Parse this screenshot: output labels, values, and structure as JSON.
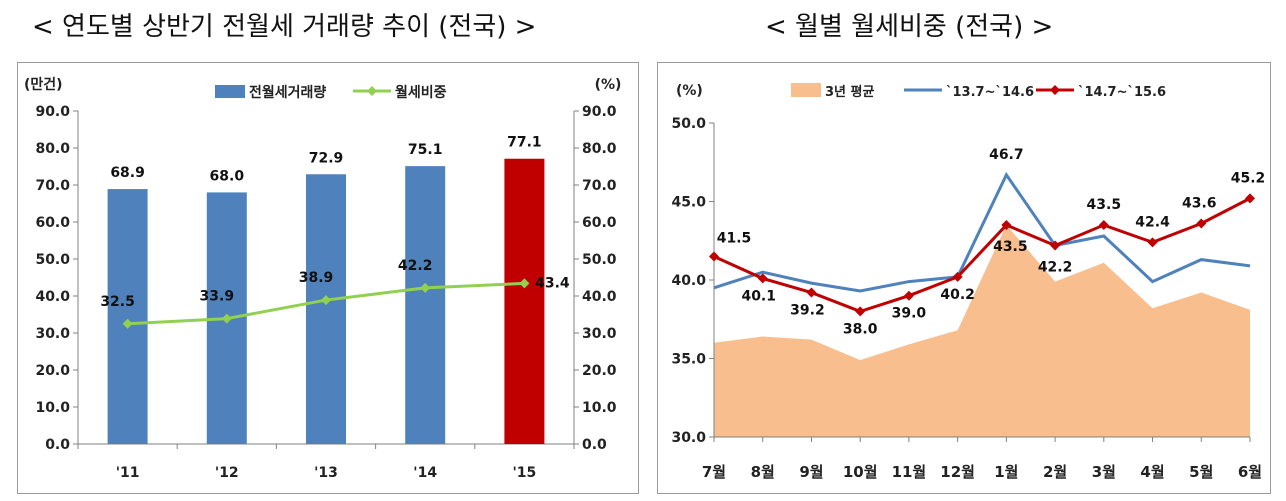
{
  "titles": {
    "left": "< 연도별 상반기 전월세 거래량 추이 (전국) >",
    "right": "< 월별 월세비중 (전국) >"
  },
  "chart_data": [
    {
      "type": "bar",
      "categories": [
        "'11",
        "'12",
        "'13",
        "'14",
        "'15"
      ],
      "series": [
        {
          "name": "전월세거래량",
          "kind": "bar",
          "axis": "left",
          "values": [
            68.9,
            68.0,
            72.9,
            75.1,
            77.1
          ],
          "colors": [
            "#4f81bd",
            "#4f81bd",
            "#4f81bd",
            "#4f81bd",
            "#c00000"
          ]
        },
        {
          "name": "월세비중",
          "kind": "line",
          "axis": "right",
          "values": [
            32.5,
            33.9,
            38.9,
            42.2,
            43.4
          ],
          "color": "#92d050"
        }
      ],
      "ylabel_left": "(만건)",
      "ylabel_right": "(%)",
      "ylim": [
        0,
        90
      ],
      "ytick_labels": [
        "0.0",
        "10.0",
        "20.0",
        "30.0",
        "40.0",
        "50.0",
        "60.0",
        "70.0",
        "80.0",
        "90.0"
      ],
      "bar_labels": [
        "68.9",
        "68.0",
        "72.9",
        "75.1",
        "77.1"
      ],
      "line_labels": [
        "32.5",
        "33.9",
        "38.9",
        "42.2",
        "43.4"
      ],
      "legend": "top-center",
      "grid": false
    },
    {
      "type": "line",
      "categories": [
        "7월",
        "8월",
        "9월",
        "10월",
        "11월",
        "12월",
        "1월",
        "2월",
        "3월",
        "4월",
        "5월",
        "6월"
      ],
      "series": [
        {
          "name": "3년 평균",
          "kind": "area",
          "values": [
            36.0,
            36.4,
            36.2,
            34.9,
            35.9,
            36.8,
            43.5,
            39.9,
            41.1,
            38.2,
            39.2,
            38.1
          ],
          "color": "#f9be8e"
        },
        {
          "name": "`13.7~`14.6",
          "kind": "line",
          "values": [
            39.5,
            40.5,
            39.8,
            39.3,
            39.9,
            40.2,
            46.7,
            42.2,
            42.8,
            39.9,
            41.3,
            40.9
          ],
          "color": "#4f81bd"
        },
        {
          "name": "`14.7~`15.6",
          "kind": "line",
          "values": [
            41.5,
            40.1,
            39.2,
            38.0,
            39.0,
            40.2,
            43.5,
            42.2,
            43.5,
            42.4,
            43.6,
            45.2
          ],
          "color": "#c00000"
        }
      ],
      "ylabel": "(%)",
      "ylim": [
        30,
        50
      ],
      "ytick_labels": [
        "30.0",
        "35.0",
        "40.0",
        "45.0",
        "50.0"
      ],
      "annotations": [
        {
          "series": 2,
          "index": 0,
          "label": "41.5"
        },
        {
          "series": 2,
          "index": 1,
          "label": "40.1"
        },
        {
          "series": 2,
          "index": 2,
          "label": "39.2"
        },
        {
          "series": 2,
          "index": 3,
          "label": "38.0"
        },
        {
          "series": 2,
          "index": 4,
          "label": "39.0"
        },
        {
          "series": 2,
          "index": 5,
          "label": "40.2"
        },
        {
          "series": 1,
          "index": 6,
          "label": "46.7"
        },
        {
          "series": 2,
          "index": 6,
          "label": "43.5"
        },
        {
          "series": 2,
          "index": 7,
          "label": "42.2"
        },
        {
          "series": 2,
          "index": 8,
          "label": "43.5"
        },
        {
          "series": 2,
          "index": 9,
          "label": "42.4"
        },
        {
          "series": 2,
          "index": 10,
          "label": "43.6"
        },
        {
          "series": 2,
          "index": 11,
          "label": "45.2"
        }
      ],
      "legend": "top",
      "grid": false
    }
  ]
}
